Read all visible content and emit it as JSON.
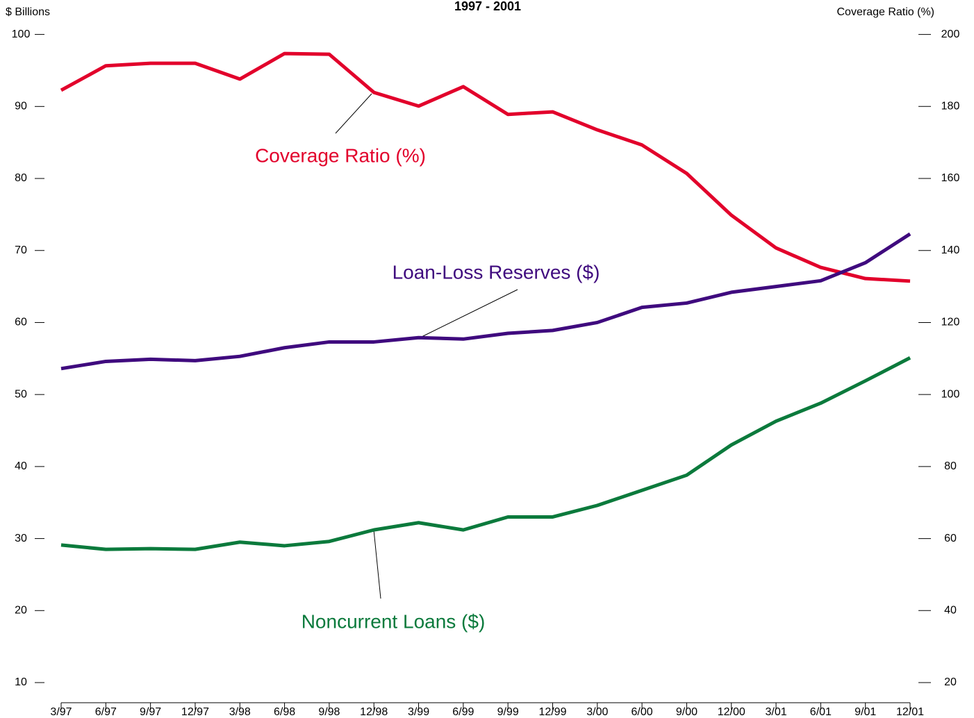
{
  "chart_data": {
    "type": "line",
    "title": "1997 - 2001",
    "y_label": "$ Billions",
    "y2_label": "Coverage Ratio (%)",
    "categories": [
      "3/97",
      "6/97",
      "9/97",
      "12/97",
      "3/98",
      "6/98",
      "9/98",
      "12/98",
      "3/99",
      "6/99",
      "9/99",
      "12/99",
      "3/00",
      "6/00",
      "9/00",
      "12/00",
      "3/01",
      "6/01",
      "9/01",
      "12/01"
    ],
    "series": [
      {
        "name": "Coverage Ratio (%)",
        "color": "#e2002b",
        "axis": "y2",
        "values": [
          184.5,
          191.3,
          192,
          192,
          187.6,
          194.7,
          194.5,
          183.9,
          180.1,
          185.5,
          177.8,
          178.5,
          173.5,
          169.3,
          161.4,
          149.8,
          140.7,
          135.3,
          132.2,
          131.5
        ]
      },
      {
        "name": "Loan-Loss Reserves ($)",
        "color": "#3f0a7e",
        "values": [
          53.6,
          54.6,
          54.9,
          54.7,
          55.3,
          56.5,
          57.3,
          57.3,
          57.9,
          57.7,
          58.5,
          58.9,
          60.0,
          62.1,
          62.7,
          64.2,
          65.0,
          65.8,
          68.3,
          72.3
        ]
      },
      {
        "name": "Noncurrent Loans ($)",
        "color": "#0b7a3c",
        "values": [
          29.1,
          28.5,
          28.6,
          28.5,
          29.5,
          29.0,
          29.6,
          31.2,
          32.2,
          31.2,
          33.0,
          33.0,
          34.6,
          36.7,
          38.8,
          43.0,
          46.3,
          48.8,
          51.9,
          55.1
        ]
      }
    ],
    "ylim": [
      10,
      100
    ],
    "yticks": [
      10,
      20,
      30,
      40,
      50,
      60,
      70,
      80,
      90,
      100
    ],
    "y2lim": [
      20,
      200
    ],
    "y2ticks": [
      20,
      40,
      60,
      80,
      100,
      120,
      140,
      160,
      180,
      200
    ]
  }
}
